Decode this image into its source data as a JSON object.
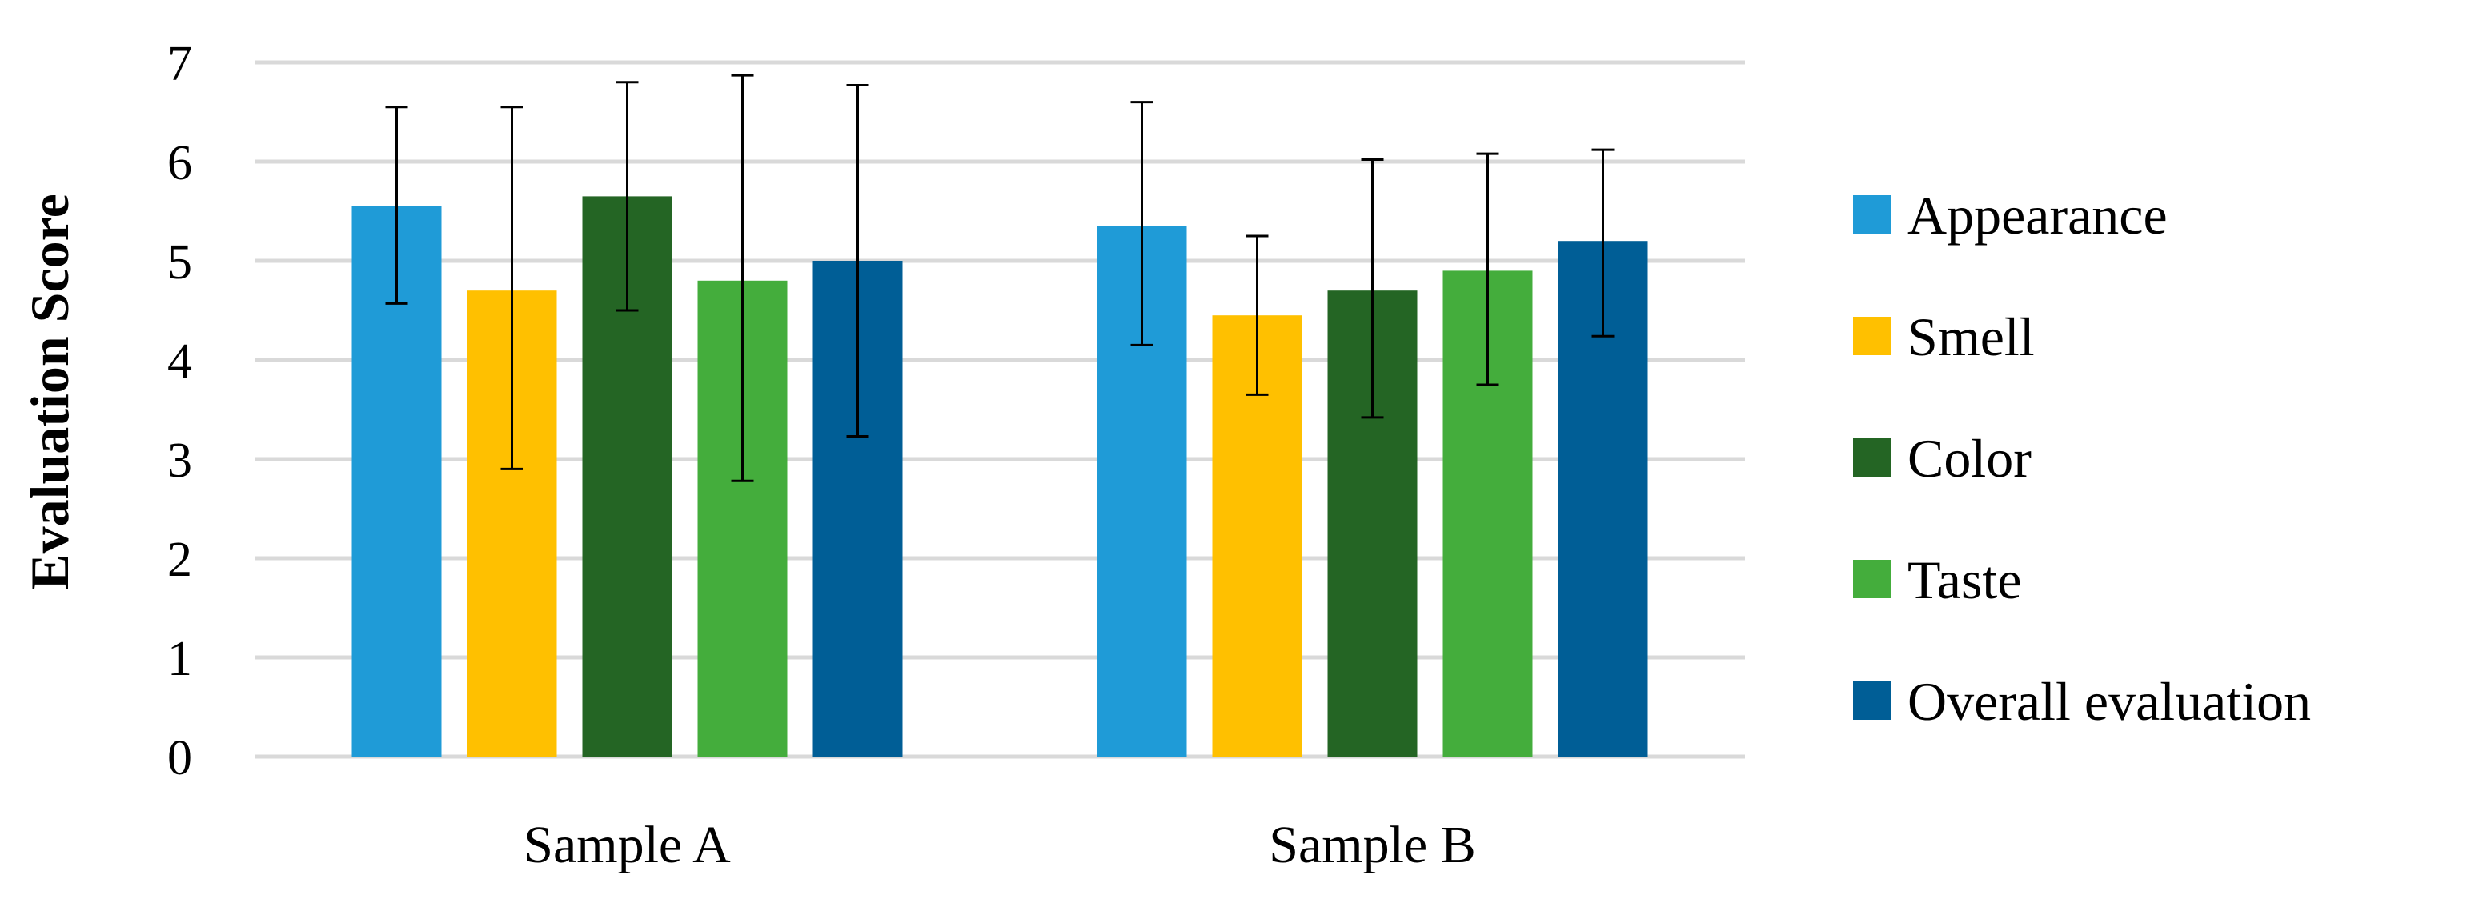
{
  "chart_data": {
    "type": "bar",
    "title": "",
    "xlabel": "",
    "ylabel": "Evaluation Score",
    "categories": [
      "Sample A",
      "Sample B"
    ],
    "ylim": [
      0,
      7
    ],
    "yticks": [
      "0",
      "1",
      "2",
      "3",
      "4",
      "5",
      "6",
      "7"
    ],
    "grid": true,
    "legend_position": "right",
    "error_bars": true,
    "series": [
      {
        "name": "Appearance",
        "color": "#1f9bd7",
        "values": [
          5.55,
          5.35
        ],
        "error_low": [
          4.57,
          4.15
        ],
        "error_high": [
          6.55,
          6.6
        ]
      },
      {
        "name": "Smell",
        "color": "#ffc000",
        "values": [
          4.7,
          4.45
        ],
        "error_low": [
          2.9,
          3.65
        ],
        "error_high": [
          6.55,
          5.25
        ]
      },
      {
        "name": "Color",
        "color": "#246524",
        "values": [
          5.65,
          4.7
        ],
        "error_low": [
          4.5,
          3.42
        ],
        "error_high": [
          6.8,
          6.02
        ]
      },
      {
        "name": "Taste",
        "color": "#44ad3c",
        "values": [
          4.8,
          4.9
        ],
        "error_low": [
          2.78,
          3.75
        ],
        "error_high": [
          6.87,
          6.08
        ]
      },
      {
        "name": "Overall evaluation",
        "color": "#005e96",
        "values": [
          5.0,
          5.2
        ],
        "error_low": [
          3.23,
          4.24
        ],
        "error_high": [
          6.77,
          6.12
        ]
      }
    ]
  }
}
